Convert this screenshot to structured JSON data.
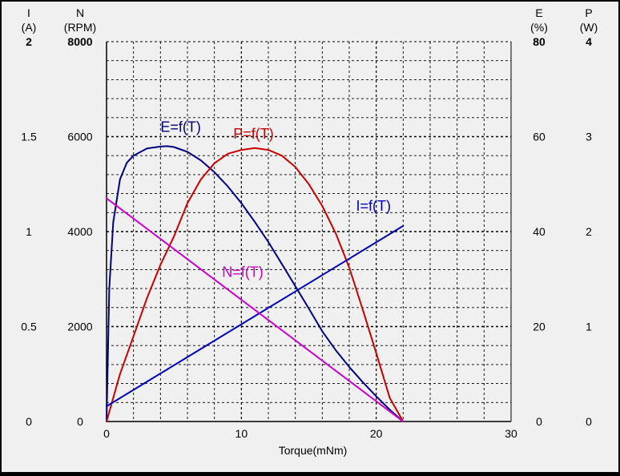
{
  "chart_data": {
    "type": "line",
    "xlabel": "Torque(mNm)",
    "x_ticks": [
      "0",
      "10",
      "20",
      "30"
    ],
    "xlim": [
      0,
      30
    ],
    "grid": true,
    "left_axes": [
      {
        "name": "I",
        "unit": "(A)",
        "top": "2",
        "ticks": [
          "0",
          "0.5",
          "1",
          "1.5"
        ],
        "range": [
          0,
          2
        ]
      },
      {
        "name": "N",
        "unit": "(RPM)",
        "top": "8000",
        "ticks": [
          "0",
          "2000",
          "4000",
          "6000"
        ],
        "range": [
          0,
          8000
        ]
      }
    ],
    "right_axes": [
      {
        "name": "E",
        "unit": "(%)",
        "top": "80",
        "ticks": [
          "0",
          "20",
          "40",
          "60"
        ],
        "range": [
          0,
          80
        ]
      },
      {
        "name": "P",
        "unit": "(W)",
        "top": "4",
        "ticks": [
          "0",
          "1",
          "2",
          "3"
        ],
        "range": [
          0,
          4
        ]
      }
    ],
    "series": [
      {
        "name": "E=f(T)",
        "axis": "E",
        "color": "#000080",
        "x": [
          0,
          0.2,
          0.5,
          1,
          1.5,
          2,
          3,
          4,
          4.5,
          5,
          6,
          7,
          8,
          9,
          10,
          11,
          12,
          13,
          14,
          15,
          16,
          17,
          18,
          19,
          20,
          21,
          22
        ],
        "y": [
          0,
          28,
          42,
          51,
          54.5,
          56,
          57.5,
          57.9,
          58,
          57.8,
          56.8,
          55,
          52.5,
          49.5,
          46,
          42,
          37.8,
          33.2,
          28.5,
          23.8,
          19,
          15,
          11.5,
          8.3,
          5.3,
          2.5,
          0
        ]
      },
      {
        "name": "P=f(T)",
        "axis": "P",
        "color": "#cc0000",
        "x": [
          0,
          1,
          2,
          3,
          4,
          5,
          6,
          7,
          8,
          9,
          10,
          11,
          12,
          13,
          14,
          15,
          16,
          17,
          18,
          19,
          20,
          21,
          22
        ],
        "y": [
          0,
          0.5,
          0.9,
          1.3,
          1.65,
          1.95,
          2.3,
          2.55,
          2.72,
          2.82,
          2.86,
          2.88,
          2.86,
          2.8,
          2.68,
          2.5,
          2.27,
          1.98,
          1.62,
          1.18,
          0.72,
          0.25,
          0
        ]
      },
      {
        "name": "I=f(T)",
        "axis": "I",
        "color": "#0000bb",
        "x": [
          0,
          22
        ],
        "y": [
          0.08,
          1.03
        ]
      },
      {
        "name": "N=f(T)",
        "axis": "N",
        "color": "#cc00cc",
        "x": [
          0,
          22
        ],
        "y": [
          4700,
          0
        ]
      }
    ],
    "annotations": [
      {
        "text": "E=f(T)",
        "color": "#000080",
        "x": 5.5,
        "y_axis": "E",
        "y": 61
      },
      {
        "text": "P=f(T)",
        "color": "#cc0000",
        "x": 10.9,
        "y_axis": "P",
        "y": 2.98
      },
      {
        "text": "I=f(T)",
        "color": "#0000bb",
        "x": 19.8,
        "y_axis": "I",
        "y": 1.11
      },
      {
        "text": "N=f(T)",
        "color": "#cc00cc",
        "x": 10.1,
        "y_axis": "N",
        "y": 3050
      }
    ]
  }
}
